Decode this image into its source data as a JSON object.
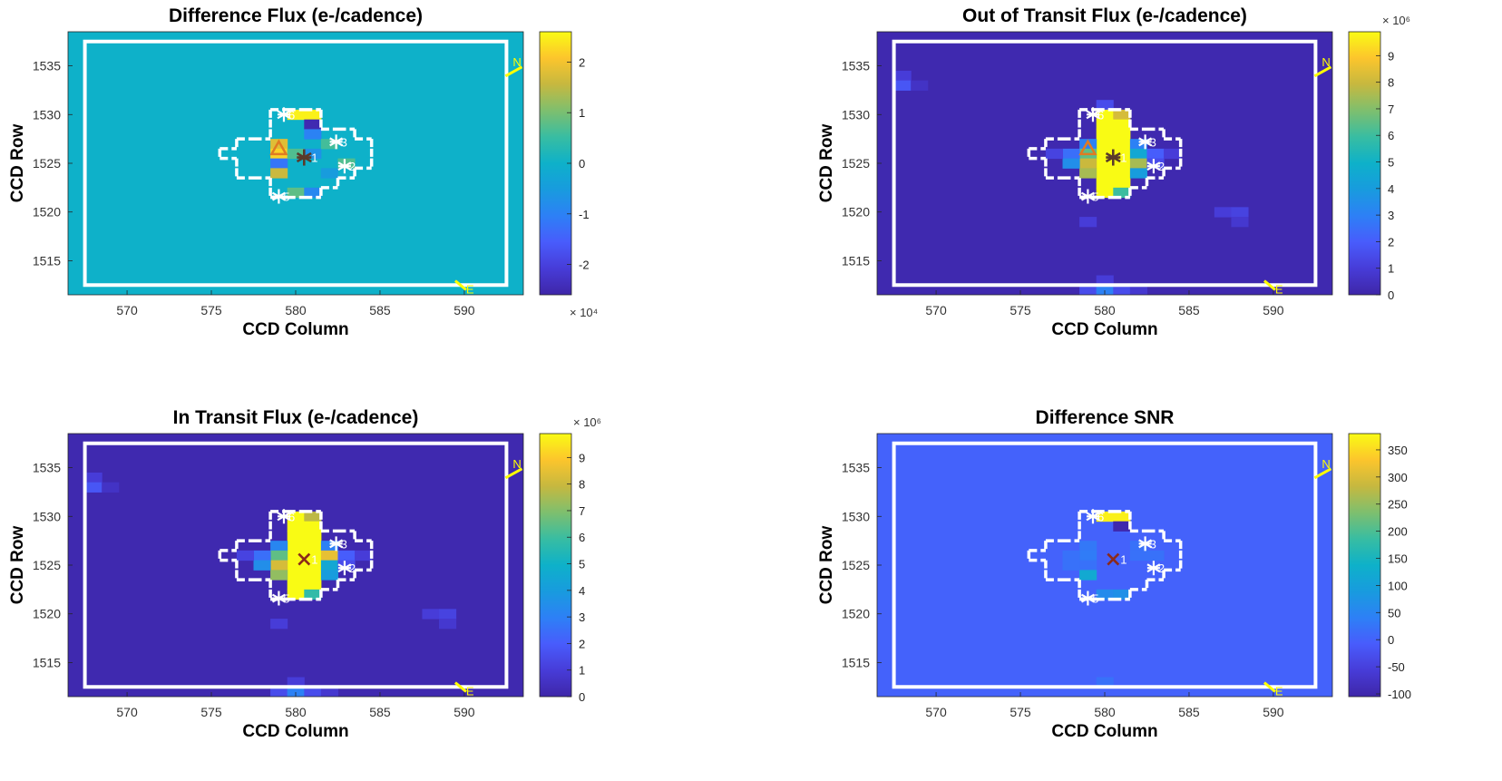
{
  "chart_data": [
    {
      "type": "heatmap",
      "title": "Difference Flux (e-/cadence)",
      "xlabel": "CCD Column",
      "ylabel": "CCD Row",
      "xlim": [
        566.5,
        593.5
      ],
      "ylim": [
        1511.5,
        1538.5
      ],
      "xticks": [
        570,
        575,
        580,
        585,
        590
      ],
      "yticks": [
        1515,
        1520,
        1525,
        1530,
        1535
      ],
      "colorbar": {
        "min": -2.6,
        "max": 2.6,
        "ticks": [
          -2,
          -1,
          0,
          1,
          2
        ],
        "exponent": "× 10⁴"
      },
      "background": 0,
      "cells": [
        {
          "col": 580,
          "row": 1530,
          "v": 2.5
        },
        {
          "col": 581,
          "row": 1530,
          "v": 2.5
        },
        {
          "col": 581,
          "row": 1529,
          "v": -2.5
        },
        {
          "col": 581,
          "row": 1528,
          "v": -1.0
        },
        {
          "col": 579,
          "row": 1527,
          "v": 1.8
        },
        {
          "col": 579,
          "row": 1526,
          "v": 2.2
        },
        {
          "col": 579,
          "row": 1525,
          "v": -1.2
        },
        {
          "col": 579,
          "row": 1524,
          "v": 1.6
        },
        {
          "col": 580,
          "row": 1526,
          "v": 0.7
        },
        {
          "col": 581,
          "row": 1526,
          "v": -0.7
        },
        {
          "col": 582,
          "row": 1524,
          "v": -0.5
        },
        {
          "col": 580,
          "row": 1522,
          "v": 0.8
        },
        {
          "col": 581,
          "row": 1522,
          "v": -0.9
        },
        {
          "col": 582,
          "row": 1527,
          "v": 0.6
        },
        {
          "col": 583,
          "row": 1525,
          "v": 0.7
        }
      ],
      "markers": {
        "stars": [
          {
            "id": "6",
            "x": 579.3,
            "y": 1530.0
          },
          {
            "id": "3",
            "x": 582.4,
            "y": 1527.2
          },
          {
            "id": "2",
            "x": 582.9,
            "y": 1524.7
          },
          {
            "id": "5",
            "x": 579.0,
            "y": 1521.6
          }
        ],
        "target": {
          "id": "1",
          "x": 580.5,
          "y": 1525.6,
          "symbol": "star",
          "color": "#5a3a2a"
        },
        "centroid": {
          "x": 579.0,
          "y": 1526.5,
          "symbol": "triangle",
          "color": "#e07b22"
        }
      },
      "compass": {
        "north": "N",
        "east": "E"
      }
    },
    {
      "type": "heatmap",
      "title": "Out of Transit Flux (e-/cadence)",
      "xlabel": "CCD Column",
      "ylabel": "CCD Row",
      "xlim": [
        566.5,
        593.5
      ],
      "ylim": [
        1511.5,
        1538.5
      ],
      "xticks": [
        570,
        575,
        580,
        585,
        590
      ],
      "yticks": [
        1515,
        1520,
        1525,
        1530,
        1535
      ],
      "colorbar": {
        "min": 0,
        "max": 9.9,
        "ticks": [
          0,
          1,
          2,
          3,
          4,
          5,
          6,
          7,
          8,
          9
        ],
        "exponent": "× 10⁶"
      },
      "background": 0.15,
      "cells": [
        {
          "col": 568,
          "row": 1534,
          "v": 1.0
        },
        {
          "col": 568,
          "row": 1533,
          "v": 1.8
        },
        {
          "col": 569,
          "row": 1533,
          "v": 0.6
        },
        {
          "col": 580,
          "row": 1531,
          "v": 1.5
        },
        {
          "col": 580,
          "row": 1530,
          "v": 9.9
        },
        {
          "col": 581,
          "row": 1530,
          "v": 8.2
        },
        {
          "col": 580,
          "row": 1529,
          "v": 9.9
        },
        {
          "col": 581,
          "row": 1529,
          "v": 9.9
        },
        {
          "col": 580,
          "row": 1528,
          "v": 9.9
        },
        {
          "col": 581,
          "row": 1528,
          "v": 9.9
        },
        {
          "col": 580,
          "row": 1527,
          "v": 9.9
        },
        {
          "col": 581,
          "row": 1527,
          "v": 9.9
        },
        {
          "col": 580,
          "row": 1526,
          "v": 9.9
        },
        {
          "col": 581,
          "row": 1526,
          "v": 9.9
        },
        {
          "col": 580,
          "row": 1525,
          "v": 9.9
        },
        {
          "col": 581,
          "row": 1525,
          "v": 9.9
        },
        {
          "col": 580,
          "row": 1524,
          "v": 9.9
        },
        {
          "col": 581,
          "row": 1524,
          "v": 9.9
        },
        {
          "col": 580,
          "row": 1523,
          "v": 9.9
        },
        {
          "col": 581,
          "row": 1523,
          "v": 9.9
        },
        {
          "col": 580,
          "row": 1522,
          "v": 9.9
        },
        {
          "col": 581,
          "row": 1522,
          "v": 6.0
        },
        {
          "col": 579,
          "row": 1527,
          "v": 3.0
        },
        {
          "col": 579,
          "row": 1526,
          "v": 6.5
        },
        {
          "col": 579,
          "row": 1525,
          "v": 8.0
        },
        {
          "col": 579,
          "row": 1524,
          "v": 7.5
        },
        {
          "col": 578,
          "row": 1526,
          "v": 2.5
        },
        {
          "col": 578,
          "row": 1525,
          "v": 3.5
        },
        {
          "col": 577,
          "row": 1526,
          "v": 1.2
        },
        {
          "col": 582,
          "row": 1527,
          "v": 3.0
        },
        {
          "col": 582,
          "row": 1526,
          "v": 4.5
        },
        {
          "col": 582,
          "row": 1525,
          "v": 7.5
        },
        {
          "col": 582,
          "row": 1524,
          "v": 4.0
        },
        {
          "col": 583,
          "row": 1526,
          "v": 2.0
        },
        {
          "col": 583,
          "row": 1525,
          "v": 1.5
        },
        {
          "col": 584,
          "row": 1526,
          "v": 1.0
        },
        {
          "col": 579,
          "row": 1519,
          "v": 1.0
        },
        {
          "col": 587,
          "row": 1520,
          "v": 1.0
        },
        {
          "col": 588,
          "row": 1520,
          "v": 1.2
        },
        {
          "col": 588,
          "row": 1519,
          "v": 0.8
        },
        {
          "col": 579,
          "row": 1512,
          "v": 1.5
        },
        {
          "col": 580,
          "row": 1512,
          "v": 3.0
        },
        {
          "col": 580,
          "row": 1513,
          "v": 1.0
        },
        {
          "col": 581,
          "row": 1512,
          "v": 1.5
        },
        {
          "col": 582,
          "row": 1512,
          "v": 0.8
        }
      ],
      "markers": {
        "stars": [
          {
            "id": "6",
            "x": 579.3,
            "y": 1530.0
          },
          {
            "id": "3",
            "x": 582.4,
            "y": 1527.2
          },
          {
            "id": "2",
            "x": 582.9,
            "y": 1524.7
          },
          {
            "id": "5",
            "x": 579.0,
            "y": 1521.6
          }
        ],
        "target": {
          "id": "1",
          "x": 580.5,
          "y": 1525.6,
          "symbol": "star",
          "color": "#5a3a2a"
        },
        "centroid": {
          "x": 579.0,
          "y": 1526.5,
          "symbol": "triangle",
          "color": "#e07b22"
        }
      },
      "compass": {
        "north": "N",
        "east": "E"
      }
    },
    {
      "type": "heatmap",
      "title": "In Transit Flux (e-/cadence)",
      "xlabel": "CCD Column",
      "ylabel": "CCD Row",
      "xlim": [
        566.5,
        593.5
      ],
      "ylim": [
        1511.5,
        1538.5
      ],
      "xticks": [
        570,
        575,
        580,
        585,
        590
      ],
      "yticks": [
        1515,
        1520,
        1525,
        1530,
        1535
      ],
      "colorbar": {
        "min": 0,
        "max": 9.9,
        "ticks": [
          0,
          1,
          2,
          3,
          4,
          5,
          6,
          7,
          8,
          9
        ],
        "exponent": "× 10⁶"
      },
      "background": 0.15,
      "cells": [
        {
          "col": 568,
          "row": 1534,
          "v": 1.0
        },
        {
          "col": 568,
          "row": 1533,
          "v": 1.8
        },
        {
          "col": 569,
          "row": 1533,
          "v": 0.6
        },
        {
          "col": 580,
          "row": 1530,
          "v": 9.9
        },
        {
          "col": 581,
          "row": 1530,
          "v": 7.8
        },
        {
          "col": 580,
          "row": 1529,
          "v": 9.9
        },
        {
          "col": 581,
          "row": 1529,
          "v": 9.9
        },
        {
          "col": 580,
          "row": 1528,
          "v": 9.9
        },
        {
          "col": 581,
          "row": 1528,
          "v": 9.9
        },
        {
          "col": 580,
          "row": 1527,
          "v": 9.9
        },
        {
          "col": 581,
          "row": 1527,
          "v": 9.9
        },
        {
          "col": 580,
          "row": 1526,
          "v": 9.9
        },
        {
          "col": 581,
          "row": 1526,
          "v": 9.9
        },
        {
          "col": 580,
          "row": 1525,
          "v": 9.9
        },
        {
          "col": 581,
          "row": 1525,
          "v": 9.9
        },
        {
          "col": 580,
          "row": 1524,
          "v": 9.9
        },
        {
          "col": 581,
          "row": 1524,
          "v": 9.9
        },
        {
          "col": 580,
          "row": 1523,
          "v": 9.9
        },
        {
          "col": 581,
          "row": 1523,
          "v": 9.9
        },
        {
          "col": 580,
          "row": 1522,
          "v": 9.9
        },
        {
          "col": 581,
          "row": 1522,
          "v": 5.8
        },
        {
          "col": 579,
          "row": 1527,
          "v": 3.2
        },
        {
          "col": 579,
          "row": 1526,
          "v": 6.5
        },
        {
          "col": 579,
          "row": 1525,
          "v": 8.2
        },
        {
          "col": 579,
          "row": 1524,
          "v": 7.2
        },
        {
          "col": 578,
          "row": 1526,
          "v": 2.5
        },
        {
          "col": 578,
          "row": 1525,
          "v": 3.5
        },
        {
          "col": 577,
          "row": 1526,
          "v": 1.2
        },
        {
          "col": 582,
          "row": 1527,
          "v": 3.0
        },
        {
          "col": 582,
          "row": 1526,
          "v": 8.5
        },
        {
          "col": 582,
          "row": 1525,
          "v": 4.5
        },
        {
          "col": 582,
          "row": 1524,
          "v": 4.0
        },
        {
          "col": 583,
          "row": 1526,
          "v": 2.0
        },
        {
          "col": 583,
          "row": 1525,
          "v": 1.5
        },
        {
          "col": 584,
          "row": 1526,
          "v": 1.0
        },
        {
          "col": 579,
          "row": 1519,
          "v": 1.0
        },
        {
          "col": 588,
          "row": 1520,
          "v": 1.0
        },
        {
          "col": 589,
          "row": 1520,
          "v": 1.2
        },
        {
          "col": 589,
          "row": 1519,
          "v": 0.8
        },
        {
          "col": 579,
          "row": 1512,
          "v": 1.5
        },
        {
          "col": 580,
          "row": 1512,
          "v": 3.0
        },
        {
          "col": 580,
          "row": 1513,
          "v": 1.0
        },
        {
          "col": 581,
          "row": 1512,
          "v": 1.5
        },
        {
          "col": 582,
          "row": 1512,
          "v": 0.8
        }
      ],
      "markers": {
        "stars": [
          {
            "id": "6",
            "x": 579.3,
            "y": 1530.0
          },
          {
            "id": "3",
            "x": 582.4,
            "y": 1527.2
          },
          {
            "id": "2",
            "x": 582.9,
            "y": 1524.7
          },
          {
            "id": "5",
            "x": 579.0,
            "y": 1521.6
          }
        ],
        "target": {
          "id": "1",
          "x": 580.5,
          "y": 1525.6,
          "symbol": "x",
          "color": "#8b2a1a"
        }
      },
      "compass": {
        "north": "N",
        "east": "E"
      }
    },
    {
      "type": "heatmap",
      "title": "Difference SNR",
      "xlabel": "CCD Column",
      "ylabel": "CCD Row",
      "xlim": [
        566.5,
        593.5
      ],
      "ylim": [
        1511.5,
        1538.5
      ],
      "xticks": [
        570,
        575,
        580,
        585,
        590
      ],
      "yticks": [
        1515,
        1520,
        1525,
        1530,
        1535
      ],
      "colorbar": {
        "min": -105,
        "max": 380,
        "ticks": [
          -100,
          -50,
          0,
          50,
          100,
          150,
          200,
          250,
          300,
          350
        ]
      },
      "background": 0,
      "cells": [
        {
          "col": 580,
          "row": 1530,
          "v": 370
        },
        {
          "col": 581,
          "row": 1530,
          "v": 370
        },
        {
          "col": 581,
          "row": 1529,
          "v": -100
        },
        {
          "col": 579,
          "row": 1527,
          "v": 30
        },
        {
          "col": 579,
          "row": 1526,
          "v": 35
        },
        {
          "col": 579,
          "row": 1525,
          "v": 20
        },
        {
          "col": 579,
          "row": 1524,
          "v": 120
        },
        {
          "col": 578,
          "row": 1526,
          "v": 20
        },
        {
          "col": 578,
          "row": 1525,
          "v": 20
        },
        {
          "col": 582,
          "row": 1527,
          "v": 20
        },
        {
          "col": 582,
          "row": 1526,
          "v": 20
        },
        {
          "col": 583,
          "row": 1526,
          "v": 20
        },
        {
          "col": 580,
          "row": 1522,
          "v": 60
        },
        {
          "col": 581,
          "row": 1522,
          "v": 70
        },
        {
          "col": 580,
          "row": 1513,
          "v": 20
        }
      ],
      "markers": {
        "stars": [
          {
            "id": "6",
            "x": 579.3,
            "y": 1530.0
          },
          {
            "id": "3",
            "x": 582.4,
            "y": 1527.2
          },
          {
            "id": "2",
            "x": 582.9,
            "y": 1524.7
          },
          {
            "id": "5",
            "x": 579.0,
            "y": 1521.6
          }
        ],
        "target": {
          "id": "1",
          "x": 580.5,
          "y": 1525.6,
          "symbol": "x",
          "color": "#8b2a1a"
        }
      },
      "compass": {
        "north": "N",
        "east": "E"
      }
    }
  ]
}
